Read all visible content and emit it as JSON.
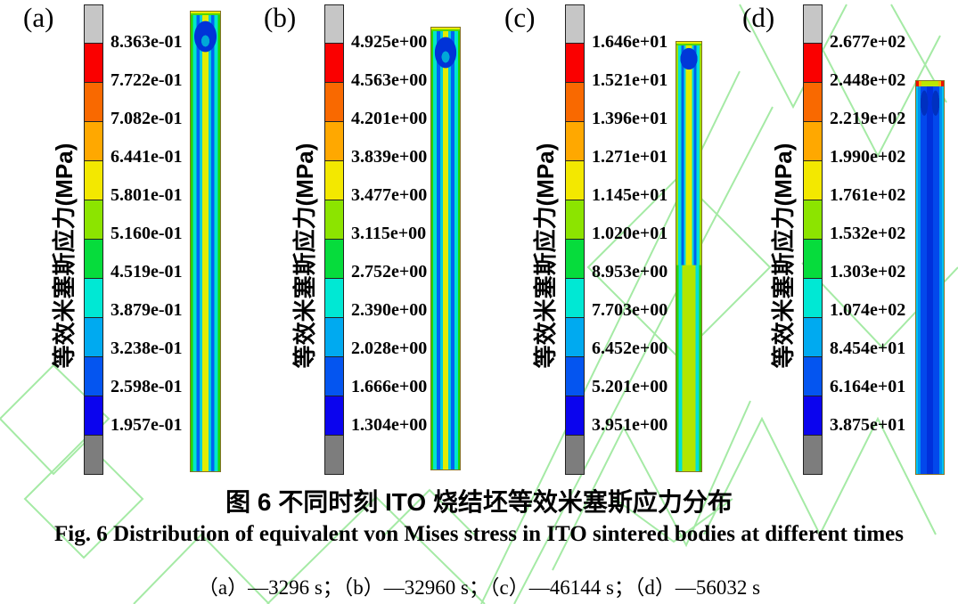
{
  "figure": {
    "captions": {
      "zh": "图 6  不同时刻 ITO 烧结坯等效米塞斯应力分布",
      "en": "Fig. 6 Distribution of equivalent von Mises stress in ITO sintered bodies at different times",
      "times": "（a）—3296 s；（b）—32960 s；（c）—46144 s；（d）—56032 s"
    },
    "colorbar": {
      "top_cap_color": "#c6c6c6",
      "bottom_cap_color": "#7d7d7d",
      "segment_colors": [
        "#fa0000",
        "#f96900",
        "#ffa800",
        "#f3e800",
        "#8ce400",
        "#06dc3c",
        "#00e8d4",
        "#00aaf0",
        "#0455f0",
        "#0b04ee"
      ]
    },
    "watermark_color": "#9ce89c",
    "panels": [
      {
        "label": "(a)",
        "axis_label": "等效米塞斯应力(MPa)",
        "ticks": [
          "8.363e-01",
          "7.722e-01",
          "7.082e-01",
          "6.441e-01",
          "5.801e-01",
          "5.160e-01",
          "4.519e-01",
          "3.879e-01",
          "3.238e-01",
          "2.598e-01",
          "1.957e-01"
        ]
      },
      {
        "label": "(b)",
        "axis_label": "等效米塞斯应力(MPa)",
        "ticks": [
          "4.925e+00",
          "4.563e+00",
          "4.201e+00",
          "3.839e+00",
          "3.477e+00",
          "3.115e+00",
          "2.752e+00",
          "2.390e+00",
          "2.028e+00",
          "1.666e+00",
          "1.304e+00"
        ]
      },
      {
        "label": "(c)",
        "axis_label": "等效米塞斯应力(MPa)",
        "ticks": [
          "1.646e+01",
          "1.521e+01",
          "1.396e+01",
          "1.271e+01",
          "1.145e+01",
          "1.020e+01",
          "8.953e+00",
          "7.703e+00",
          "6.452e+00",
          "5.201e+00",
          "3.951e+00"
        ]
      },
      {
        "label": "(d)",
        "axis_label": "等效米塞斯应力(MPa)",
        "ticks": [
          "2.677e+02",
          "2.448e+02",
          "2.219e+02",
          "1.990e+02",
          "1.761e+02",
          "1.532e+02",
          "1.303e+02",
          "1.074e+02",
          "8.454e+01",
          "6.164e+01",
          "3.875e+01"
        ]
      }
    ]
  },
  "chart_data": [
    {
      "type": "heatmap",
      "title": "(a) equivalent von Mises stress, t=3296 s",
      "unit": "MPa",
      "colorbar_ticks": [
        0.8363,
        0.7722,
        0.7082,
        0.6441,
        0.5801,
        0.516,
        0.4519,
        0.3879,
        0.3238,
        0.2598,
        0.1957
      ],
      "colorbar_range": [
        0.1957,
        0.8363
      ],
      "legend_position": "left",
      "colorbar_label": "等效米塞斯应力(MPa)"
    },
    {
      "type": "heatmap",
      "title": "(b) equivalent von Mises stress, t=32960 s",
      "unit": "MPa",
      "colorbar_ticks": [
        4.925,
        4.563,
        4.201,
        3.839,
        3.477,
        3.115,
        2.752,
        2.39,
        2.028,
        1.666,
        1.304
      ],
      "colorbar_range": [
        1.304,
        4.925
      ],
      "legend_position": "left",
      "colorbar_label": "等效米塞斯应力(MPa)"
    },
    {
      "type": "heatmap",
      "title": "(c) equivalent von Mises stress, t=46144 s",
      "unit": "MPa",
      "colorbar_ticks": [
        16.46,
        15.21,
        13.96,
        12.71,
        11.45,
        10.2,
        8.953,
        7.703,
        6.452,
        5.201,
        3.951
      ],
      "colorbar_range": [
        3.951,
        16.46
      ],
      "legend_position": "left",
      "colorbar_label": "等效米塞斯应力(MPa)"
    },
    {
      "type": "heatmap",
      "title": "(d) equivalent von Mises stress, t=56032 s",
      "unit": "MPa",
      "colorbar_ticks": [
        267.7,
        244.8,
        221.9,
        199.0,
        176.1,
        153.2,
        130.3,
        107.4,
        84.54,
        61.64,
        38.75
      ],
      "colorbar_range": [
        38.75,
        267.7
      ],
      "legend_position": "left",
      "colorbar_label": "等效米塞斯应力(MPa)"
    }
  ]
}
